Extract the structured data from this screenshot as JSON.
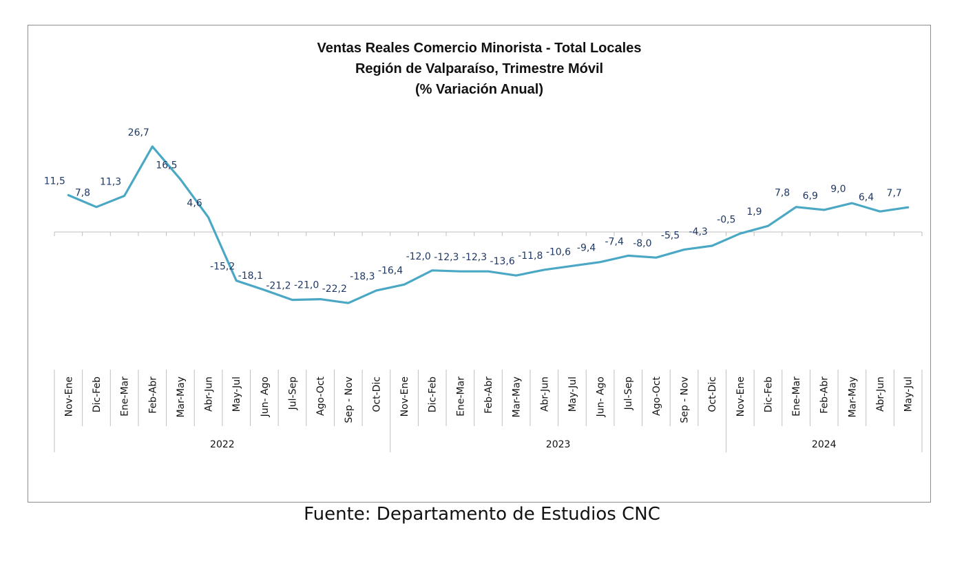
{
  "chart_data": {
    "type": "line",
    "title": [
      "Ventas Reales Comercio Minorista - Total Locales",
      "Región de Valparaíso, Trimestre Móvil",
      "(% Variación Anual)"
    ],
    "categories": [
      "Nov-Ene",
      "Dic-Feb",
      "Ene-Mar",
      "Feb-Abr",
      "Mar-May",
      "Abr-Jun",
      "May-Jul",
      "Jun- Ago",
      "Jul-Sep",
      "Ago-Oct",
      "Sep - Nov",
      "Oct-Dic",
      "Nov-Ene",
      "Dic-Feb",
      "Ene-Mar",
      "Feb-Abr",
      "Mar-May",
      "Abr-Jun",
      "May-Jul",
      "Jun- Ago",
      "Jul-Sep",
      "Ago-Oct",
      "Sep - Nov",
      "Oct-Dic",
      "Nov-Ene",
      "Dic-Feb",
      "Ene-Mar",
      "Feb-Abr",
      "Mar-May",
      "Abr-Jun",
      "May-Jul"
    ],
    "years": [
      {
        "label": "2022",
        "count": 12
      },
      {
        "label": "2023",
        "count": 12
      },
      {
        "label": "2024",
        "count": 7
      }
    ],
    "series": [
      {
        "values": [
          11.5,
          7.8,
          11.3,
          26.7,
          16.5,
          4.6,
          -15.2,
          -18.1,
          -21.2,
          -21.0,
          -22.2,
          -18.3,
          -16.4,
          -12.0,
          -12.3,
          -12.3,
          -13.6,
          -11.8,
          -10.6,
          -9.4,
          -7.4,
          -8.0,
          -5.5,
          -4.3,
          -0.5,
          1.9,
          7.8,
          6.9,
          9.0,
          6.4,
          7.7
        ],
        "labels": [
          "11,5",
          "7,8",
          "11,3",
          "26,7",
          "16,5",
          "4,6",
          "-15,2",
          "-18,1",
          "-21,2",
          "-21,0",
          "-22,2",
          "-18,3",
          "-16,4",
          "-12,0",
          "-12,3",
          "-12,3",
          "-13,6",
          "-11,8",
          "-10,6",
          "-9,4",
          "-7,4",
          "-8,0",
          "-5,5",
          "-4,3",
          "-0,5",
          "1,9",
          "7,8",
          "6,9",
          "9,0",
          "6,4",
          "7,7"
        ]
      }
    ],
    "colors": {
      "line": "#4aa8c4",
      "labels": "#1f3864",
      "axis": "#bfbfbf"
    },
    "grid": false,
    "legend": "none"
  },
  "source": "Fuente: Departamento de Estudios CNC"
}
